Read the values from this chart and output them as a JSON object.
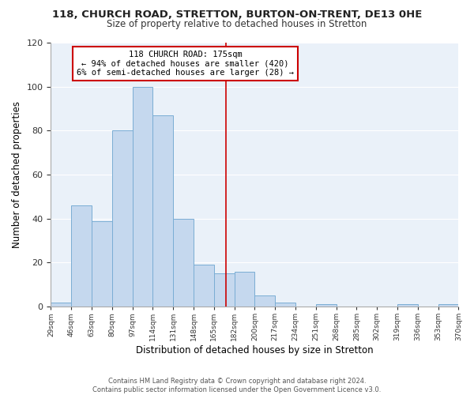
{
  "title_line1": "118, CHURCH ROAD, STRETTON, BURTON-ON-TRENT, DE13 0HE",
  "title_line2": "Size of property relative to detached houses in Stretton",
  "xlabel": "Distribution of detached houses by size in Stretton",
  "ylabel": "Number of detached properties",
  "bin_edges": [
    29,
    46,
    63,
    80,
    97,
    114,
    131,
    148,
    165,
    182,
    199,
    216,
    233,
    250,
    267,
    284,
    301,
    318,
    335,
    352,
    369
  ],
  "bar_heights": [
    2,
    46,
    39,
    80,
    100,
    87,
    40,
    19,
    15,
    16,
    5,
    2,
    0,
    1,
    0,
    0,
    0,
    1,
    0,
    1
  ],
  "bar_color": "#c5d8ee",
  "bar_edge_color": "#7aadd4",
  "tick_labels": [
    "29sqm",
    "46sqm",
    "63sqm",
    "80sqm",
    "97sqm",
    "114sqm",
    "131sqm",
    "148sqm",
    "165sqm",
    "182sqm",
    "200sqm",
    "217sqm",
    "234sqm",
    "251sqm",
    "268sqm",
    "285sqm",
    "302sqm",
    "319sqm",
    "336sqm",
    "353sqm",
    "370sqm"
  ],
  "vline_x": 175,
  "vline_color": "#cc0000",
  "ylim": [
    0,
    120
  ],
  "yticks": [
    0,
    20,
    40,
    60,
    80,
    100,
    120
  ],
  "annotation_title": "118 CHURCH ROAD: 175sqm",
  "annotation_line2": "← 94% of detached houses are smaller (420)",
  "annotation_line3": "6% of semi-detached houses are larger (28) →",
  "footer_line1": "Contains HM Land Registry data © Crown copyright and database right 2024.",
  "footer_line2": "Contains public sector information licensed under the Open Government Licence v3.0.",
  "plot_bg_color": "#eaf1f9",
  "background_color": "#ffffff",
  "grid_color": "#ffffff"
}
